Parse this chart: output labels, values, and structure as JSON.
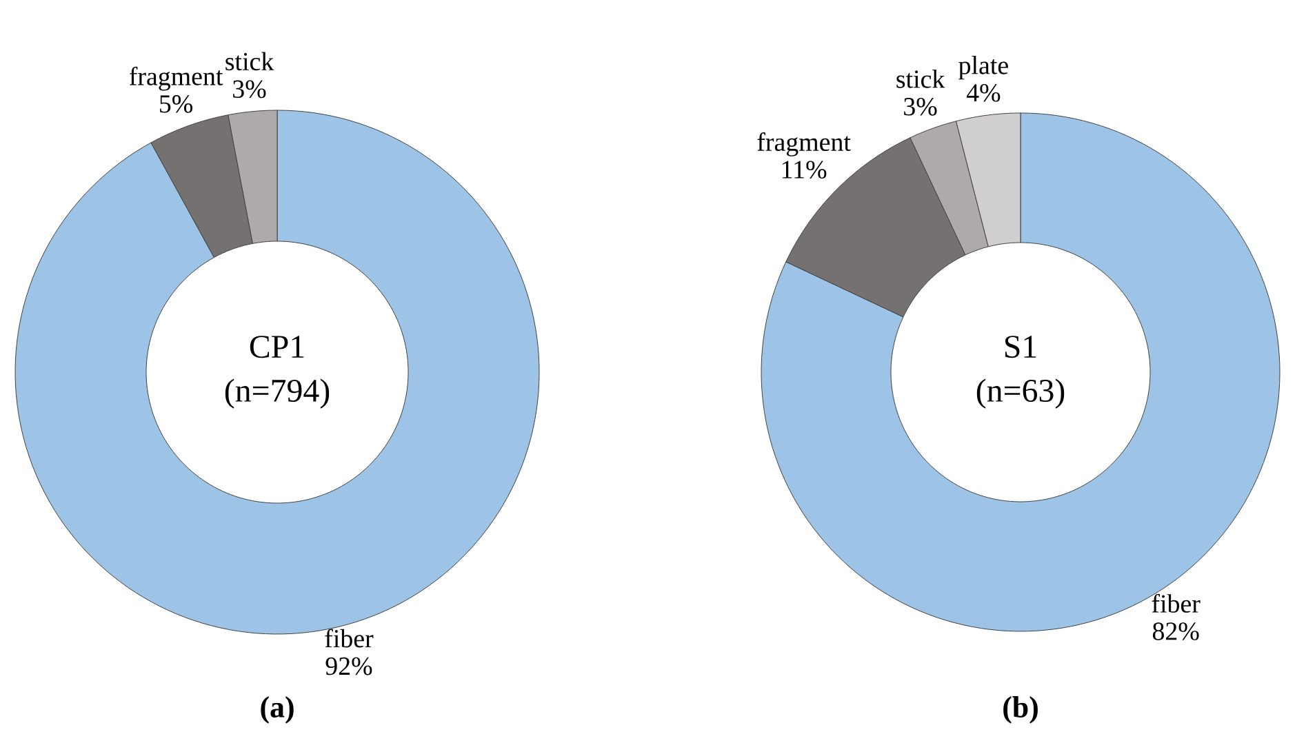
{
  "chart_data": [
    {
      "type": "donut",
      "title": "CP1",
      "subtitle": "(n=794)",
      "categories": [
        "fiber",
        "fragment",
        "stick"
      ],
      "values": [
        92,
        5,
        3
      ],
      "value_labels": [
        "92%",
        "5%",
        "3%"
      ],
      "colors": [
        "#9dc3e6",
        "#767171",
        "#aeaaaa"
      ],
      "annotations": [
        "**(a)**"
      ]
    },
    {
      "type": "donut",
      "title": "S1",
      "subtitle": "(n=63)",
      "categories": [
        "fiber",
        "fragment",
        "stick",
        "plate"
      ],
      "values": [
        82,
        11,
        3,
        4
      ],
      "value_labels": [
        "82%",
        "11%",
        "3%",
        "4%"
      ],
      "colors": [
        "#9dc3e6",
        "#767171",
        "#aeaaaa",
        "#d0cece"
      ],
      "annotations": [
        "**(b)**"
      ]
    }
  ]
}
